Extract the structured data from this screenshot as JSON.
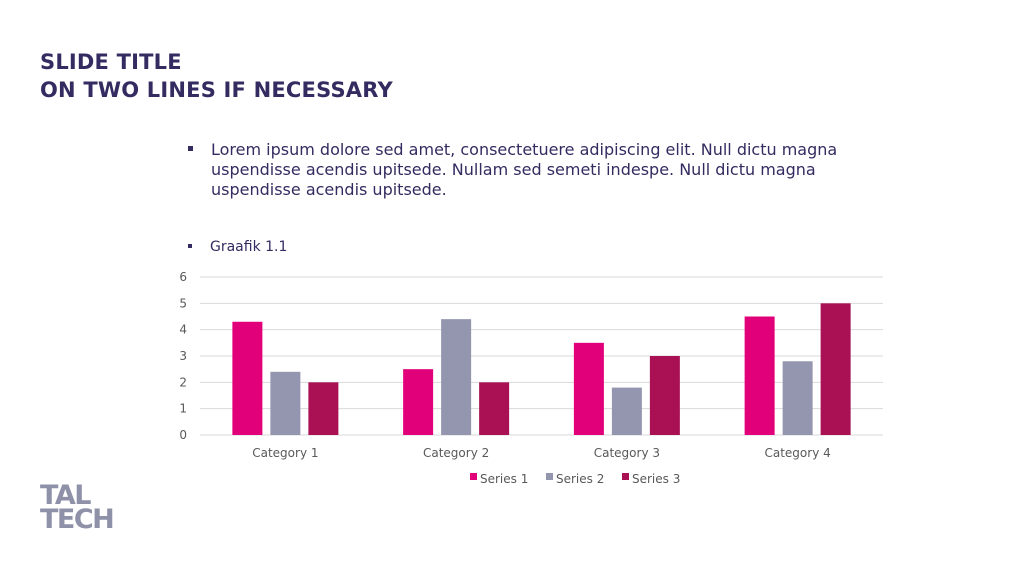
{
  "slide": {
    "title_line1": "SLIDE TITLE",
    "title_line2": "ON TWO LINES IF NECESSARY",
    "bullet": "Lorem ipsum dolore sed amet, consectetuere adipiscing elit. Null dictu magna uspendisse acendis upitsede. Nullam sed semeti indespe. Null dictu magna uspendisse acendis upitsede.",
    "sub_bullet": "Graafik 1.1"
  },
  "logo": {
    "line1": "TAL",
    "line2": "TECH"
  },
  "colors": {
    "title": "#342B60",
    "series1": "#E2007A",
    "series2": "#9496B0",
    "series3": "#AA1155",
    "grid": "#D9D9D9",
    "logo": "#8F91A8"
  },
  "chart_data": {
    "type": "bar",
    "categories": [
      "Category 1",
      "Category 2",
      "Category 3",
      "Category 4"
    ],
    "series": [
      {
        "name": "Series 1",
        "values": [
          4.3,
          2.5,
          3.5,
          4.5
        ]
      },
      {
        "name": "Series 2",
        "values": [
          2.4,
          4.4,
          1.8,
          2.8
        ]
      },
      {
        "name": "Series 3",
        "values": [
          2,
          2,
          3,
          5
        ]
      }
    ],
    "ylim": [
      0,
      6
    ],
    "yticks": [
      "0",
      "1",
      "2",
      "3",
      "4",
      "5",
      "6"
    ],
    "grid": true,
    "legend": "bottom"
  }
}
